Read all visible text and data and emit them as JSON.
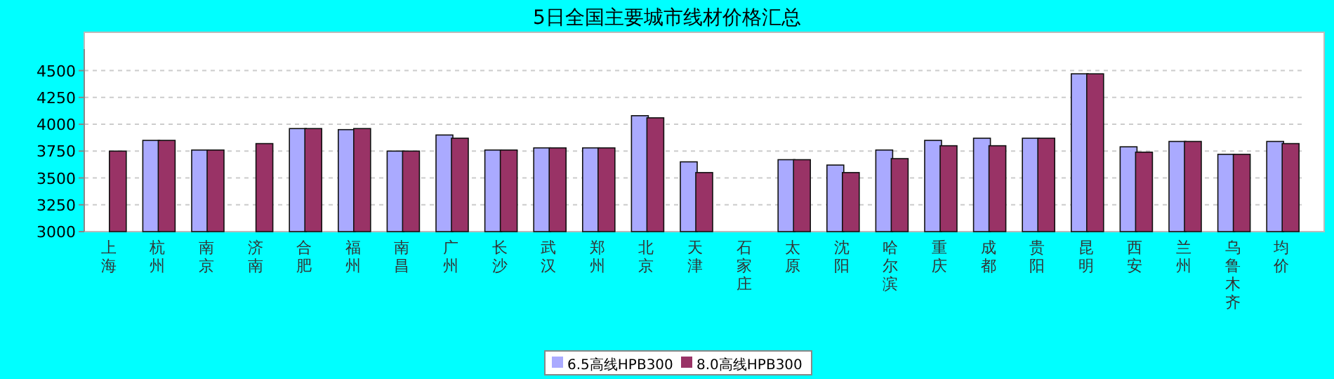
{
  "chart_data": {
    "type": "bar",
    "title": "5日全国主要城市线材价格汇总",
    "categories": [
      "上海",
      "杭州",
      "南京",
      "济南",
      "合肥",
      "福州",
      "南昌",
      "广州",
      "长沙",
      "武汉",
      "郑州",
      "北京",
      "天津",
      "石家庄",
      "太原",
      "沈阳",
      "哈尔滨",
      "重庆",
      "成都",
      "贵阳",
      "昆明",
      "西安",
      "兰州",
      "乌鲁木齐",
      "均价"
    ],
    "series": [
      {
        "name": "6.5高线HPB300",
        "color": "#aaaaff",
        "values": [
          null,
          3850,
          3760,
          null,
          3960,
          3950,
          3750,
          3900,
          3760,
          3780,
          3780,
          4080,
          3650,
          null,
          3670,
          3620,
          3760,
          3850,
          3870,
          3870,
          4470,
          3790,
          3840,
          3720,
          3840
        ]
      },
      {
        "name": "8.0高线HPB300",
        "color": "#993366",
        "values": [
          3750,
          3850,
          3760,
          3820,
          3960,
          3960,
          3750,
          3870,
          3760,
          3780,
          3780,
          4060,
          3550,
          null,
          3670,
          3550,
          3680,
          3800,
          3800,
          3870,
          4470,
          3740,
          3840,
          3720,
          3820
        ]
      }
    ],
    "ylim": [
      3000,
      4700
    ],
    "yticks": [
      3000,
      3250,
      3500,
      3750,
      4000,
      4250,
      4500
    ],
    "grid": "y",
    "legend": "bottom"
  }
}
